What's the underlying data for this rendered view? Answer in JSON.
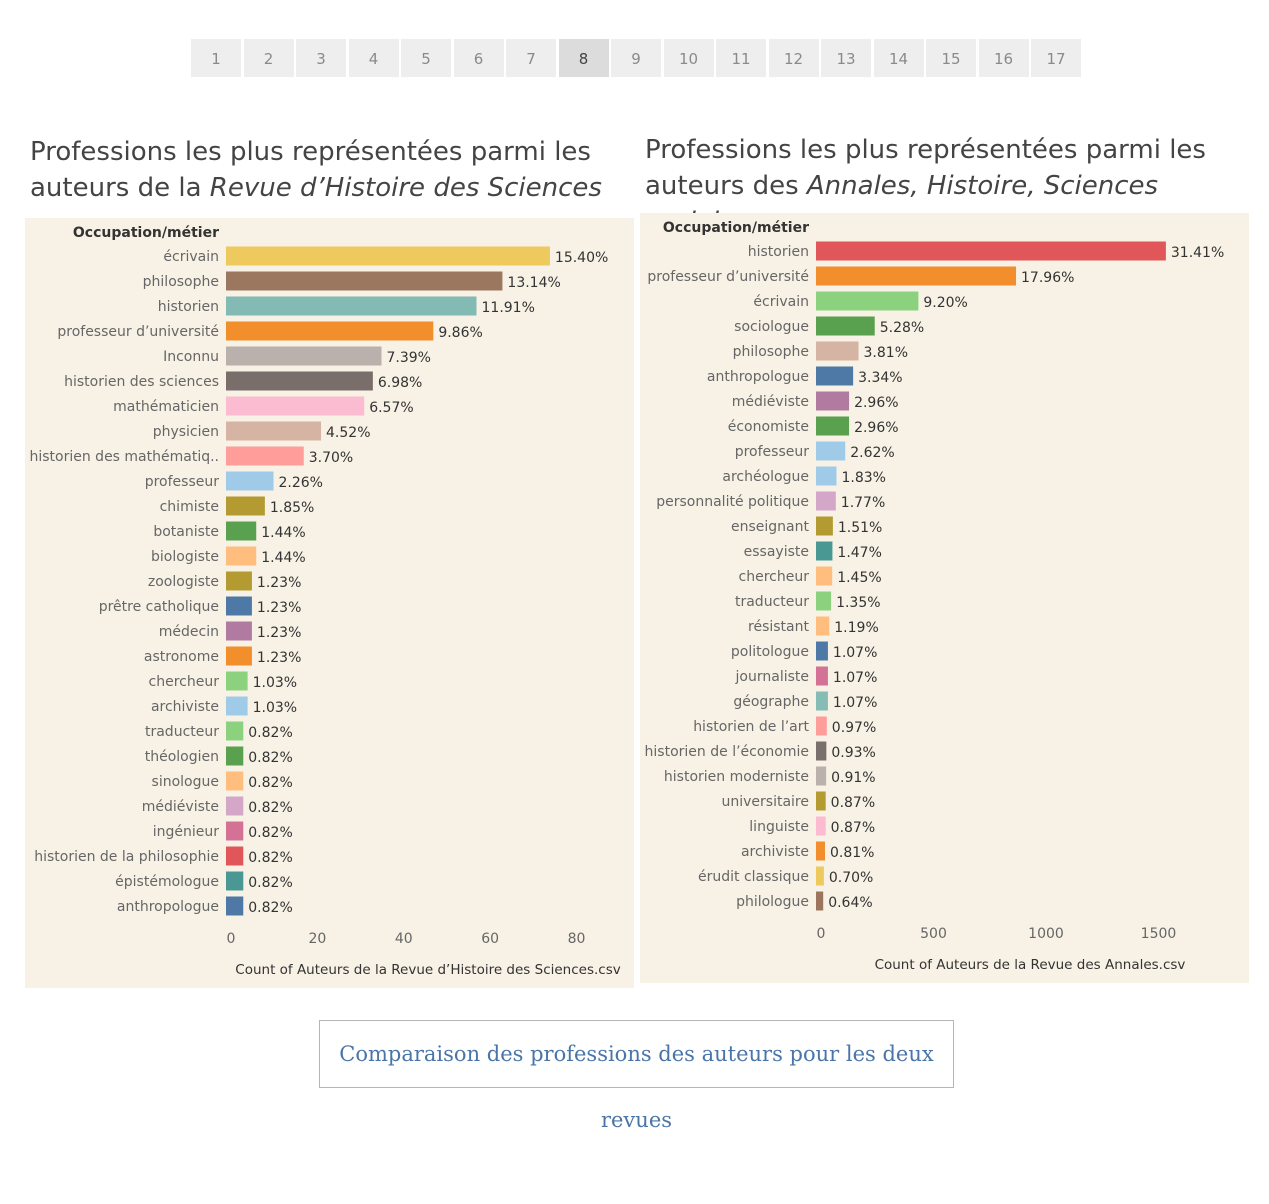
{
  "pagination": {
    "pages": [
      "1",
      "2",
      "3",
      "4",
      "5",
      "6",
      "7",
      "8",
      "9",
      "10",
      "11",
      "12",
      "13",
      "14",
      "15",
      "16",
      "17"
    ],
    "active": "8"
  },
  "left": {
    "title_line1": "Professions les plus représentées parmi les",
    "title_line2_prefix": "auteurs de la ",
    "title_line2_italic": "Revue d’Histoire des Sciences"
  },
  "right": {
    "title_line1": "Professions les plus représentées parmi les",
    "title_line2_prefix": "auteurs des ",
    "title_line2_italic": "Annales, Histoire, Sciences sociales"
  },
  "caption": "Comparaison des professions des auteurs pour les deux revues",
  "chart_data": [
    {
      "type": "bar",
      "orientation": "horizontal",
      "header": "Occupation/métier",
      "xlabel": "Count of Auteurs de la Revue d’Histoire des Sciences.csv",
      "xlim": [
        0,
        94
      ],
      "ticks": [
        0,
        20,
        40,
        60,
        80
      ],
      "categories": [
        "écrivain",
        "philosophe",
        "historien",
        "professeur d’université",
        "Inconnu",
        "historien des sciences",
        "mathématicien",
        "physicien",
        "historien des mathématiq..",
        "professeur",
        "chimiste",
        "botaniste",
        "biologiste",
        "zoologiste",
        "prêtre catholique",
        "médecin",
        "astronome",
        "chercheur",
        "archiviste",
        "traducteur",
        "théologien",
        "sinologue",
        "médiéviste",
        "ingénieur",
        "historien de la philosophie",
        "épistémologue",
        "anthropologue"
      ],
      "values": [
        75,
        64,
        58,
        48,
        36,
        34,
        32,
        22,
        18,
        11,
        9,
        7,
        7,
        6,
        6,
        6,
        6,
        5,
        5,
        4,
        4,
        4,
        4,
        4,
        4,
        4,
        4
      ],
      "labels": [
        "15.40%",
        "13.14%",
        "11.91%",
        "9.86%",
        "7.39%",
        "6.98%",
        "6.57%",
        "4.52%",
        "3.70%",
        "2.26%",
        "1.85%",
        "1.44%",
        "1.44%",
        "1.23%",
        "1.23%",
        "1.23%",
        "1.23%",
        "1.03%",
        "1.03%",
        "0.82%",
        "0.82%",
        "0.82%",
        "0.82%",
        "0.82%",
        "0.82%",
        "0.82%",
        "0.82%"
      ],
      "colors": [
        "#edc95e",
        "#9c7760",
        "#83bbb4",
        "#f28e2c",
        "#bab0ac",
        "#7a6e6a",
        "#fbbbd0",
        "#d6b4a4",
        "#ff9d9a",
        "#a0cbe8",
        "#b39b31",
        "#59a14f",
        "#ffbe7d",
        "#b39b31",
        "#4e79a7",
        "#b07aa1",
        "#f28e2c",
        "#8cd17d",
        "#a0cbe8",
        "#8cd17d",
        "#59a14f",
        "#ffbe7d",
        "#d4a6c8",
        "#d37295",
        "#e15759",
        "#499894",
        "#4e79a7"
      ]
    },
    {
      "type": "bar",
      "orientation": "horizontal",
      "header": "Occupation/métier",
      "xlabel": "Count of Auteurs de la Revue des Annales.csv",
      "xlim": [
        0,
        1920
      ],
      "ticks": [
        0,
        500,
        1000,
        1500
      ],
      "categories": [
        "historien",
        "professeur d’université",
        "écrivain",
        "sociologue",
        "philosophe",
        "anthropologue",
        "médiéviste",
        "économiste",
        "professeur",
        "archéologue",
        "personnalité politique",
        "enseignant",
        "essayiste",
        "chercheur",
        "traducteur",
        "résistant",
        "politologue",
        "journaliste",
        "géographe",
        "historien de l’art",
        "historien de l’économie",
        "historien moderniste",
        "universitaire",
        "linguiste",
        "archiviste",
        "érudit classique",
        "philologue"
      ],
      "values": [
        1555,
        889,
        455,
        261,
        189,
        165,
        147,
        147,
        130,
        91,
        88,
        75,
        73,
        72,
        67,
        59,
        53,
        53,
        53,
        48,
        46,
        45,
        43,
        43,
        40,
        35,
        32
      ],
      "labels": [
        "31.41%",
        "17.96%",
        "9.20%",
        "5.28%",
        "3.81%",
        "3.34%",
        "2.96%",
        "2.96%",
        "2.62%",
        "1.83%",
        "1.77%",
        "1.51%",
        "1.47%",
        "1.45%",
        "1.35%",
        "1.19%",
        "1.07%",
        "1.07%",
        "1.07%",
        "0.97%",
        "0.93%",
        "0.91%",
        "0.87%",
        "0.87%",
        "0.81%",
        "0.70%",
        "0.64%"
      ],
      "colors": [
        "#e15759",
        "#f28e2c",
        "#8cd17d",
        "#59a14f",
        "#d6b4a4",
        "#4e79a7",
        "#b07aa1",
        "#59a14f",
        "#a0cbe8",
        "#a0cbe8",
        "#d4a6c8",
        "#b39b31",
        "#499894",
        "#ffbe7d",
        "#8cd17d",
        "#ffbe7d",
        "#4e79a7",
        "#d37295",
        "#86bcb6",
        "#ff9d9a",
        "#79706e",
        "#bab0ac",
        "#b39b31",
        "#fbbbd0",
        "#f28e2c",
        "#edc95e",
        "#9c755f"
      ]
    }
  ]
}
